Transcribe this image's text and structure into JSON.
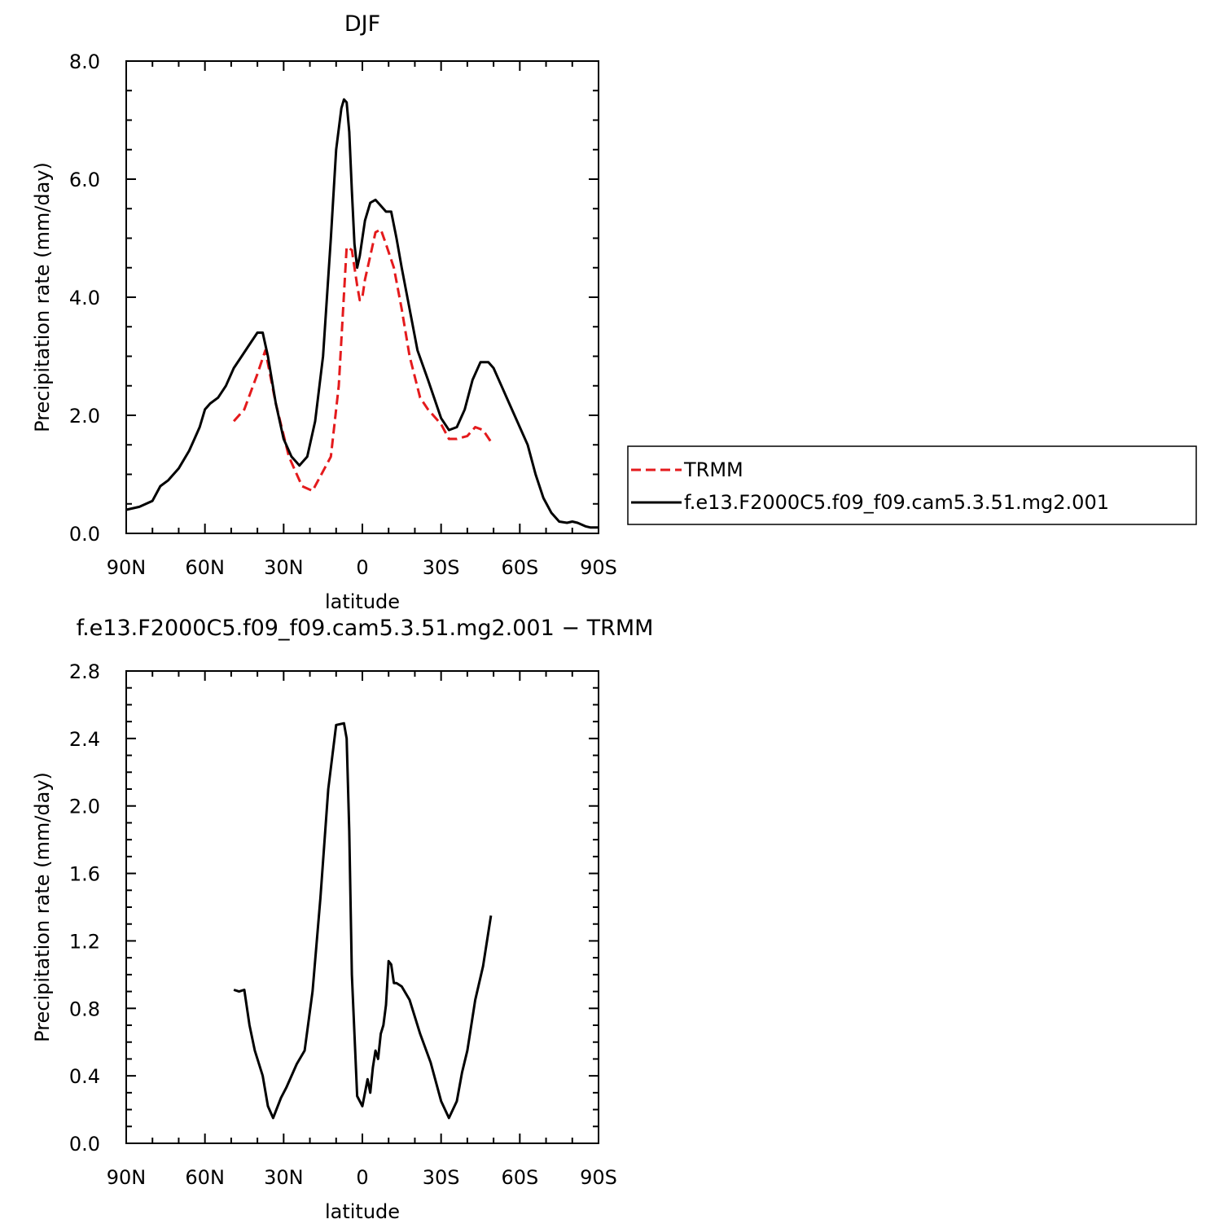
{
  "charts": [
    {
      "title": "DJF",
      "xlabel": "latitude",
      "ylabel": "Precipitation rate (mm/day)",
      "ylim": [
        0,
        8
      ],
      "y_ticks": [
        "0.0",
        "2.0",
        "4.0",
        "6.0",
        "8.0"
      ],
      "x_ticks": [
        "90N",
        "60N",
        "30N",
        "0",
        "30S",
        "60S",
        "90S"
      ],
      "legend": [
        "TRMM",
        "f.e13.F2000C5.f09_f09.cam5.3.51.mg2.001"
      ]
    },
    {
      "title": "f.e13.F2000C5.f09_f09.cam5.3.51.mg2.001 − TRMM",
      "xlabel": "latitude",
      "ylabel": "Precipitation rate (mm/day)",
      "ylim": [
        0,
        2.8
      ],
      "y_ticks": [
        "0.0",
        "0.4",
        "0.8",
        "1.2",
        "1.6",
        "2.0",
        "2.4",
        "2.8"
      ],
      "x_ticks": [
        "90N",
        "60N",
        "30N",
        "0",
        "30S",
        "60S",
        "90S"
      ]
    }
  ],
  "chart_data": [
    {
      "type": "line",
      "title": "DJF",
      "xlabel": "latitude",
      "ylabel": "Precipitation rate (mm/day)",
      "xlim": [
        90,
        -90
      ],
      "ylim": [
        0,
        8
      ],
      "series": [
        {
          "name": "TRMM",
          "color": "#e41a1c",
          "style": "dashed",
          "x": [
            49,
            45,
            40,
            37,
            33,
            28,
            23,
            19,
            12,
            9,
            6,
            4,
            2,
            1,
            0,
            -1,
            -3,
            -5,
            -7,
            -9,
            -12,
            -15,
            -18,
            -22,
            -25,
            -30,
            -33,
            -36,
            -40,
            -43,
            -46,
            -49
          ],
          "y": [
            1.9,
            2.1,
            2.7,
            3.1,
            2.2,
            1.3,
            0.8,
            0.72,
            1.3,
            2.5,
            4.85,
            4.8,
            4.2,
            3.95,
            4.0,
            4.3,
            4.7,
            5.1,
            5.15,
            4.9,
            4.5,
            3.8,
            3.0,
            2.3,
            2.1,
            1.85,
            1.6,
            1.6,
            1.65,
            1.8,
            1.75,
            1.55
          ]
        },
        {
          "name": "f.e13.F2000C5.f09_f09.cam5.3.51.mg2.001",
          "color": "#000000",
          "style": "solid",
          "x": [
            90,
            85,
            80,
            77,
            74,
            70,
            66,
            64,
            62,
            60,
            58,
            55,
            52,
            49,
            46,
            43,
            40,
            38,
            36,
            33,
            30,
            27,
            24,
            21,
            18,
            15,
            12,
            10,
            8,
            7,
            6,
            5,
            4,
            3,
            2,
            1,
            0,
            -1,
            -3,
            -5,
            -7,
            -9,
            -11,
            -13,
            -15,
            -18,
            -21,
            -25,
            -30,
            -33,
            -36,
            -39,
            -42,
            -45,
            -48,
            -50,
            -53,
            -56,
            -60,
            -63,
            -66,
            -69,
            -72,
            -75,
            -78,
            -80,
            -82,
            -85,
            -87,
            -90
          ],
          "y": [
            0.4,
            0.45,
            0.55,
            0.8,
            0.9,
            1.1,
            1.4,
            1.6,
            1.8,
            2.1,
            2.2,
            2.3,
            2.5,
            2.8,
            3.0,
            3.2,
            3.4,
            3.4,
            3.0,
            2.2,
            1.6,
            1.3,
            1.15,
            1.3,
            1.9,
            3.0,
            5.0,
            6.5,
            7.2,
            7.35,
            7.3,
            6.8,
            5.8,
            4.9,
            4.5,
            4.7,
            5.0,
            5.3,
            5.6,
            5.65,
            5.55,
            5.45,
            5.45,
            5.0,
            4.5,
            3.8,
            3.1,
            2.6,
            1.95,
            1.75,
            1.8,
            2.1,
            2.6,
            2.9,
            2.9,
            2.8,
            2.5,
            2.2,
            1.8,
            1.5,
            1.0,
            0.6,
            0.35,
            0.2,
            0.18,
            0.2,
            0.18,
            0.12,
            0.1,
            0.1
          ]
        }
      ],
      "legend": [
        "TRMM",
        "f.e13.F2000C5.f09_f09.cam5.3.51.mg2.001"
      ],
      "legend_position": "right"
    },
    {
      "type": "line",
      "title": "f.e13.F2000C5.f09_f09.cam5.3.51.mg2.001 − TRMM",
      "xlabel": "latitude",
      "ylabel": "Precipitation rate (mm/day)",
      "xlim": [
        90,
        -90
      ],
      "ylim": [
        0,
        2.8
      ],
      "series": [
        {
          "color": "#000000",
          "style": "solid",
          "x": [
            49,
            47,
            45,
            43,
            41,
            38,
            36,
            34,
            31,
            29,
            27,
            25,
            22,
            19,
            16,
            13,
            10,
            7,
            6,
            5,
            4,
            2,
            0,
            -2,
            -3,
            -4,
            -5,
            -6,
            -7,
            -8,
            -9,
            -10,
            -11,
            -12,
            -13,
            -15,
            -18,
            -22,
            -26,
            -30,
            -33,
            -36,
            -38,
            -40,
            -43,
            -46,
            -49
          ],
          "y": [
            0.91,
            0.9,
            0.91,
            0.7,
            0.55,
            0.4,
            0.22,
            0.15,
            0.27,
            0.33,
            0.4,
            0.47,
            0.55,
            0.9,
            1.45,
            2.1,
            2.48,
            2.49,
            2.4,
            1.85,
            1.0,
            0.28,
            0.22,
            0.38,
            0.3,
            0.45,
            0.55,
            0.5,
            0.65,
            0.7,
            0.82,
            1.08,
            1.06,
            0.95,
            0.95,
            0.93,
            0.85,
            0.65,
            0.48,
            0.25,
            0.15,
            0.25,
            0.42,
            0.55,
            0.85,
            1.05,
            1.35
          ]
        }
      ]
    }
  ]
}
